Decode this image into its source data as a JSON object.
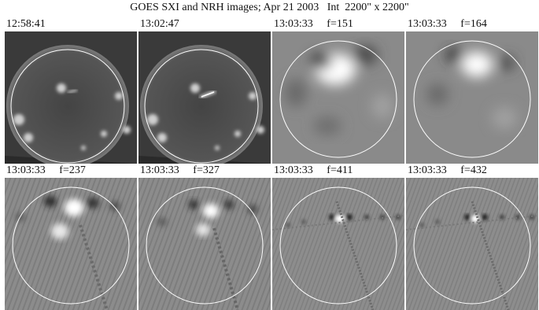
{
  "title": "GOES SXI and NRH images; Apr 21 2003   Int  2200\" x 2200\"",
  "panels": [
    {
      "kind": "sxi",
      "time": "12:58:41",
      "freq": "",
      "label": "12:58:41"
    },
    {
      "kind": "sxi",
      "time": "13:02:47",
      "freq": "",
      "label": "13:02:47"
    },
    {
      "kind": "nrh",
      "time": "13:03:33",
      "freq": "f=151",
      "label": "13:03:33     f=151"
    },
    {
      "kind": "nrh",
      "time": "13:03:33",
      "freq": "f=164",
      "label": "13:03:33     f=164"
    },
    {
      "kind": "nrh",
      "time": "13:03:33",
      "freq": "f=237",
      "label": "13:03:33     f=237"
    },
    {
      "kind": "nrh",
      "time": "13:03:33",
      "freq": "f=327",
      "label": "13:03:33     f=327"
    },
    {
      "kind": "nrh",
      "time": "13:03:33",
      "freq": "f=411",
      "label": "13:03:33     f=411"
    },
    {
      "kind": "nrh",
      "time": "13:03:33",
      "freq": "f=432",
      "label": "13:03:33     f=432"
    }
  ],
  "colors": {
    "limb_circle": "#ffffff",
    "sxi_background": "#2a2a2a",
    "nrh_background": "#8a8a8a"
  }
}
